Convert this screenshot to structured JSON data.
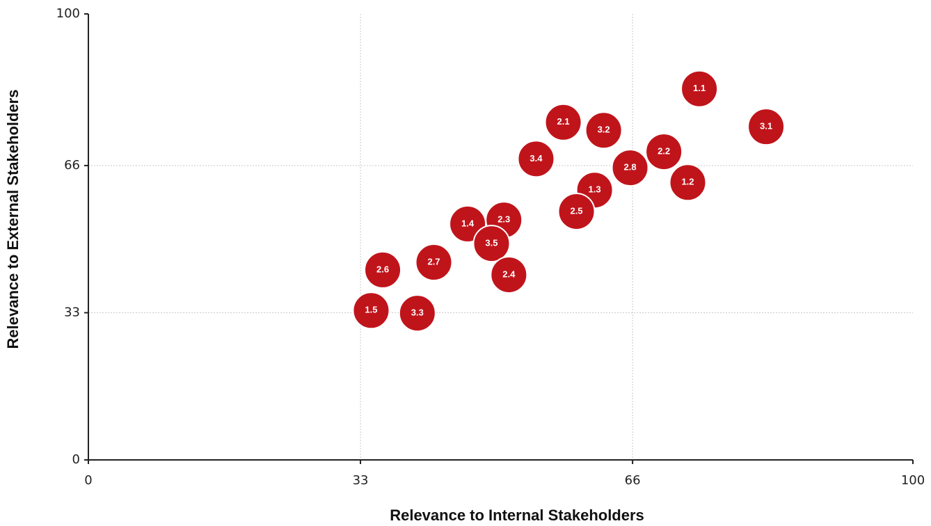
{
  "chart_data": {
    "type": "scatter",
    "x_label": "Relevance to Internal Stakeholders",
    "y_label": "Relevance to External Stakeholders",
    "point_labels": [
      "1.1",
      "3.1",
      "2.1",
      "3.2",
      "2.2",
      "3.4",
      "2.8",
      "1.2",
      "1.3",
      "2.5",
      "1.4",
      "2.3",
      "3.5",
      "2.7",
      "2.6",
      "2.4",
      "1.5",
      "3.3"
    ],
    "x": [
      74.1,
      82.2,
      57.6,
      62.5,
      69.8,
      54.3,
      65.7,
      72.7,
      61.4,
      59.2,
      46.0,
      50.4,
      48.9,
      41.9,
      35.7,
      51.0,
      34.3,
      39.9
    ],
    "values": [
      83.2,
      74.7,
      75.7,
      73.9,
      69.1,
      67.5,
      65.5,
      62.2,
      60.5,
      55.7,
      52.9,
      53.8,
      48.5,
      44.3,
      42.6,
      41.5,
      33.5,
      32.9
    ],
    "color": "#c0141b",
    "xlim": [
      0,
      100
    ],
    "xticks": [
      0,
      33,
      66,
      100
    ],
    "ylim": [
      0,
      100
    ],
    "yticks": [
      0,
      33,
      66,
      100
    ],
    "grid": true
  }
}
